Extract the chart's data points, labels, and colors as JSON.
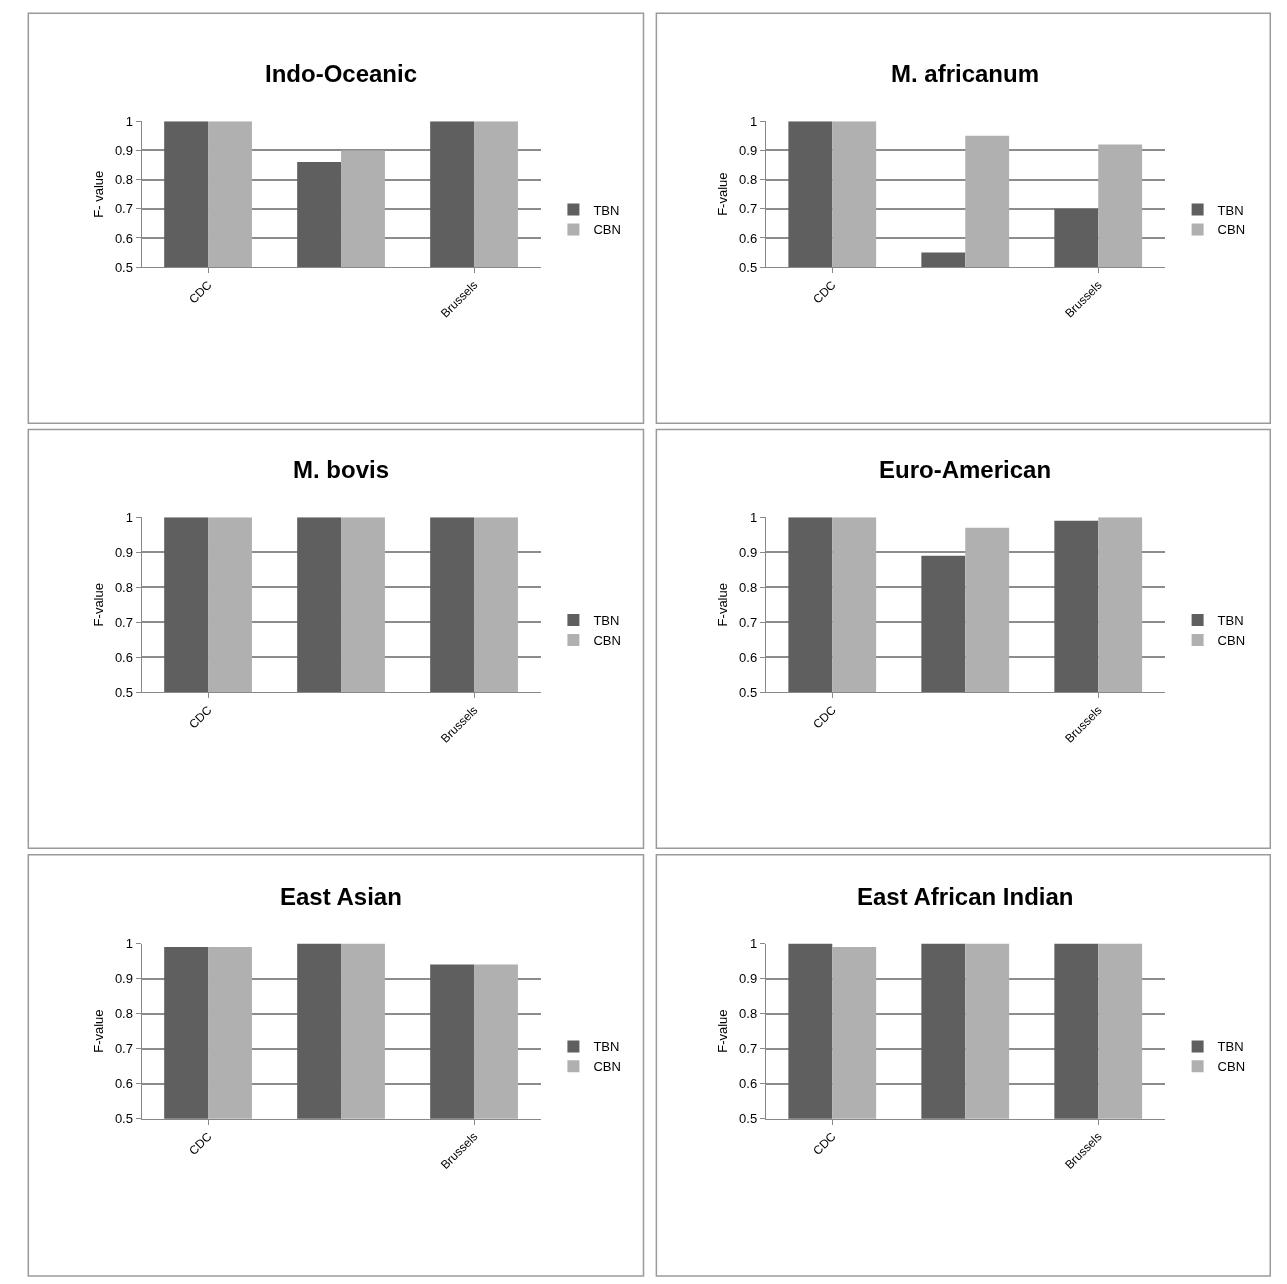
{
  "chart_data": [
    {
      "type": "bar",
      "title": "Indo-Oceanic",
      "ylabel": "F- value",
      "categories": [
        "CDC",
        null,
        "Brussels"
      ],
      "series": [
        {
          "name": "TBN",
          "color": "#5f5f5f",
          "values": [
            1,
            0.86,
            1
          ]
        },
        {
          "name": "CBN",
          "color": "#b0b0b0",
          "values": [
            1,
            0.9,
            1
          ]
        }
      ],
      "ylim": [
        0.5,
        1
      ],
      "yticks": [
        0.5,
        0.6,
        0.7,
        0.8,
        0.9,
        1
      ],
      "grid": "y",
      "legend": "right"
    },
    {
      "type": "bar",
      "title": "M. africanum",
      "ylabel": "F-value",
      "categories": [
        "CDC",
        null,
        "Brussels"
      ],
      "series": [
        {
          "name": "TBN",
          "color": "#5f5f5f",
          "values": [
            1,
            0.55,
            0.7
          ]
        },
        {
          "name": "CBN",
          "color": "#b0b0b0",
          "values": [
            1,
            0.95,
            0.92
          ]
        }
      ],
      "ylim": [
        0.5,
        1
      ],
      "yticks": [
        0.5,
        0.6,
        0.7,
        0.8,
        0.9,
        1
      ],
      "grid": "y",
      "legend": "right"
    },
    {
      "type": "bar",
      "title": "M. bovis",
      "ylabel": "F-value",
      "categories": [
        "CDC",
        null,
        "Brussels"
      ],
      "series": [
        {
          "name": "TBN",
          "color": "#5f5f5f",
          "values": [
            1,
            1,
            1
          ]
        },
        {
          "name": "CBN",
          "color": "#b0b0b0",
          "values": [
            1,
            1,
            1
          ]
        }
      ],
      "ylim": [
        0.5,
        1
      ],
      "yticks": [
        0.5,
        0.6,
        0.7,
        0.8,
        0.9,
        1
      ],
      "grid": "y",
      "legend": "right"
    },
    {
      "type": "bar",
      "title": "Euro-American",
      "ylabel": "F-value",
      "categories": [
        "CDC",
        null,
        "Brussels"
      ],
      "series": [
        {
          "name": "TBN",
          "color": "#5f5f5f",
          "values": [
            1,
            0.89,
            0.99
          ]
        },
        {
          "name": "CBN",
          "color": "#b0b0b0",
          "values": [
            1,
            0.97,
            1
          ]
        }
      ],
      "ylim": [
        0.5,
        1
      ],
      "yticks": [
        0.5,
        0.6,
        0.7,
        0.8,
        0.9,
        1
      ],
      "grid": "y",
      "legend": "right"
    },
    {
      "type": "bar",
      "title": "East Asian",
      "ylabel": "F-value",
      "categories": [
        "CDC",
        null,
        "Brussels"
      ],
      "series": [
        {
          "name": "TBN",
          "color": "#5f5f5f",
          "values": [
            0.99,
            1,
            0.94
          ]
        },
        {
          "name": "CBN",
          "color": "#b0b0b0",
          "values": [
            0.99,
            1,
            0.94
          ]
        }
      ],
      "ylim": [
        0.5,
        1
      ],
      "yticks": [
        0.5,
        0.6,
        0.7,
        0.8,
        0.9,
        1
      ],
      "grid": "y",
      "legend": "right"
    },
    {
      "type": "bar",
      "title": "East African Indian",
      "ylabel": "F-value",
      "categories": [
        "CDC",
        null,
        "Brussels"
      ],
      "series": [
        {
          "name": "TBN",
          "color": "#5f5f5f",
          "values": [
            1,
            1,
            1
          ]
        },
        {
          "name": "CBN",
          "color": "#b0b0b0",
          "values": [
            0.99,
            1,
            1
          ]
        }
      ],
      "ylim": [
        0.5,
        1
      ],
      "yticks": [
        0.5,
        0.6,
        0.7,
        0.8,
        0.9,
        1
      ],
      "grid": "y",
      "legend": "right"
    }
  ]
}
